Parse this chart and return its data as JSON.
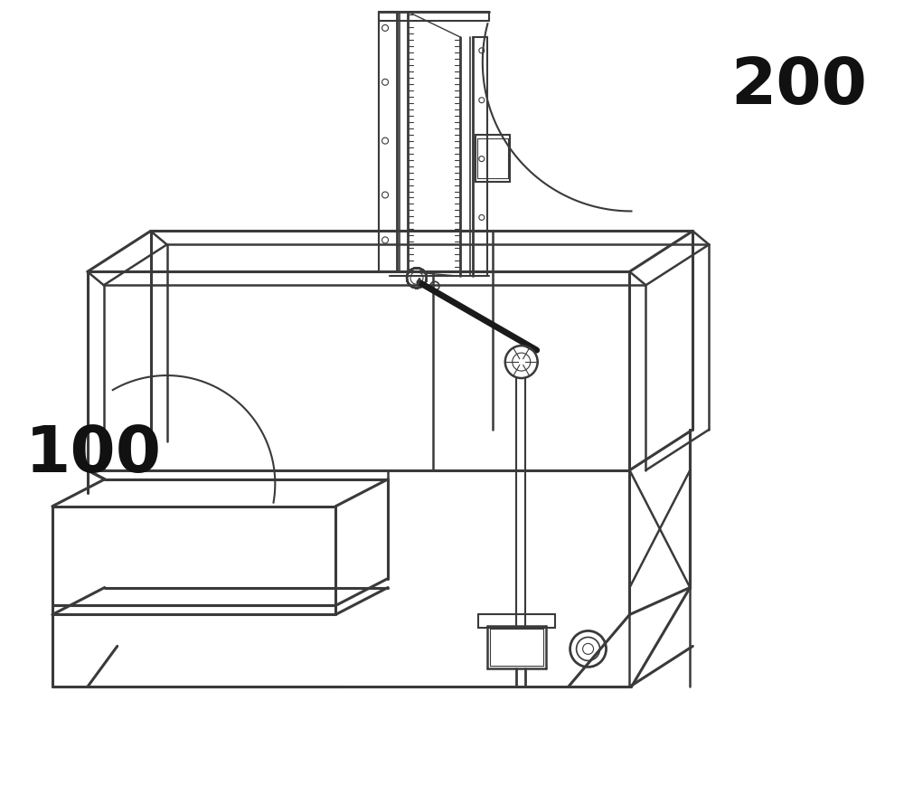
{
  "bg_color": "#ffffff",
  "lc": "#3a3a3a",
  "lw_main": 1.8,
  "lw_thick": 2.2,
  "lw_thin": 1.0,
  "label_100": "100",
  "label_200": "200",
  "label_fs": 52
}
